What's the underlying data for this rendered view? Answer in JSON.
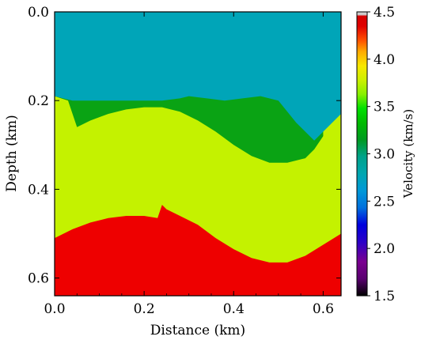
{
  "chart_data": {
    "type": "heatmap",
    "title": "",
    "xlabel": "Distance (km)",
    "ylabel": "Depth (km)",
    "xlim": [
      0.0,
      0.64
    ],
    "ylim": [
      0.64,
      0.0
    ],
    "x_ticks": [
      "0.0",
      "0.2",
      "0.4",
      "0.6"
    ],
    "x_tick_values": [
      0.0,
      0.2,
      0.4,
      0.6
    ],
    "y_ticks": [
      "0.0",
      "0.2",
      "0.4",
      "0.6"
    ],
    "y_tick_values": [
      0.0,
      0.2,
      0.4,
      0.6
    ],
    "colorbar": {
      "label": "Velocity (km/s)",
      "range": [
        1.5,
        4.5
      ],
      "ticks": [
        "1.5",
        "2.0",
        "2.5",
        "3.0",
        "3.5",
        "4.0",
        "4.5"
      ],
      "tick_values": [
        1.5,
        2.0,
        2.5,
        3.0,
        3.5,
        4.0,
        4.5
      ],
      "colormap": "nipy_spectral"
    },
    "layers": [
      {
        "velocity": 2.6,
        "color": "#00a5b8",
        "top": "surface",
        "bottom": "interface_1"
      },
      {
        "velocity": 3.2,
        "color": "#0aa314",
        "top": "interface_1",
        "bottom": "channel lens"
      },
      {
        "velocity": 3.6,
        "color": "#c4f200",
        "top": "interface_1",
        "bottom": "interface_2"
      },
      {
        "velocity": 4.4,
        "color": "#ee0000",
        "top": "interface_2",
        "bottom": "model base"
      }
    ],
    "interface_1_depths": {
      "x": [
        0.0,
        0.04,
        0.08,
        0.12,
        0.16,
        0.2,
        0.24,
        0.28,
        0.3,
        0.34,
        0.38,
        0.42,
        0.46,
        0.5,
        0.54,
        0.57,
        0.58,
        0.6,
        0.64
      ],
      "y": [
        0.19,
        0.2,
        0.2,
        0.2,
        0.2,
        0.2,
        0.2,
        0.195,
        0.19,
        0.195,
        0.2,
        0.195,
        0.19,
        0.2,
        0.25,
        0.28,
        0.29,
        0.27,
        0.23
      ]
    },
    "interface_2_depths": {
      "x": [
        0.0,
        0.04,
        0.08,
        0.12,
        0.16,
        0.2,
        0.23,
        0.24,
        0.25,
        0.28,
        0.32,
        0.36,
        0.4,
        0.44,
        0.48,
        0.52,
        0.56,
        0.6,
        0.64
      ],
      "y": [
        0.51,
        0.49,
        0.475,
        0.465,
        0.46,
        0.46,
        0.465,
        0.435,
        0.445,
        0.46,
        0.48,
        0.51,
        0.535,
        0.555,
        0.565,
        0.565,
        0.55,
        0.525,
        0.5
      ]
    }
  }
}
